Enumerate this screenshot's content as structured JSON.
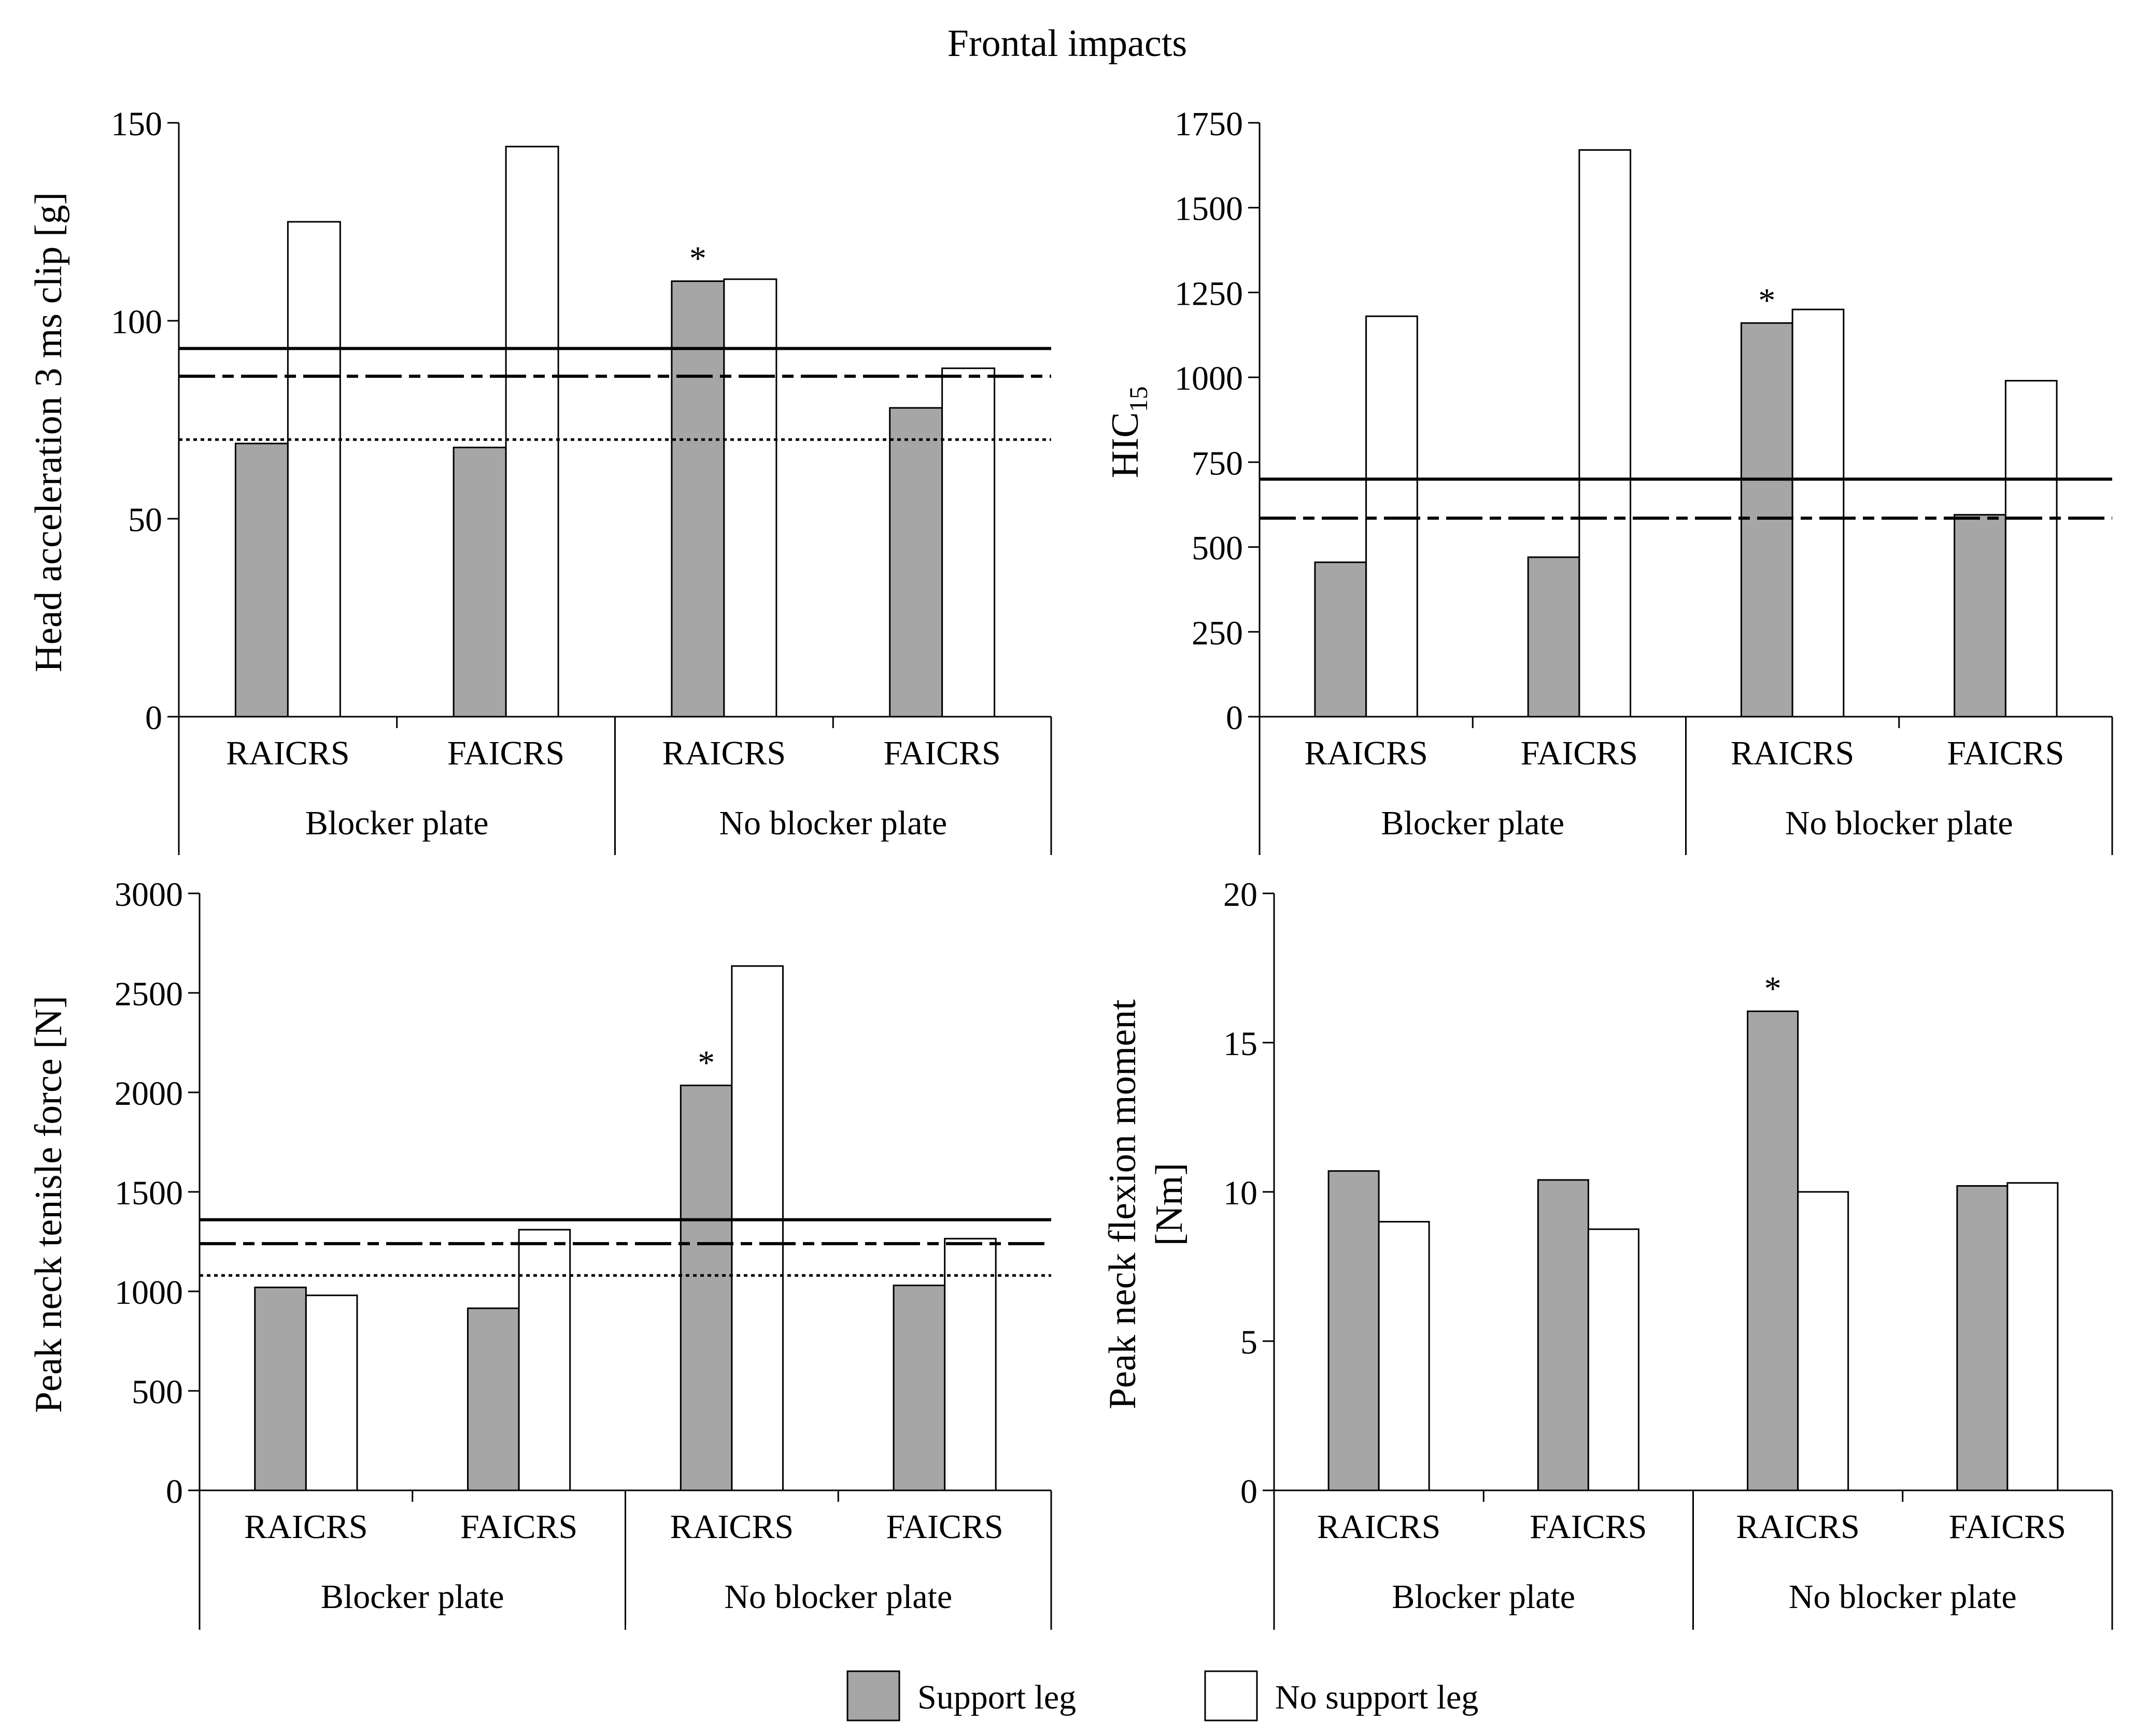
{
  "title": "Frontal impacts",
  "colors": {
    "support": "#a6a6a6",
    "no_support": "#ffffff",
    "line": "#000000"
  },
  "legend": [
    {
      "key": "support",
      "label": "Support leg"
    },
    {
      "key": "no_support",
      "label": "No support leg"
    }
  ],
  "chart_data": [
    {
      "type": "bar",
      "ylabel": "Head acceleration  3 ms clip [g]",
      "ylim": [
        0,
        150
      ],
      "yticks": [
        0,
        50,
        100,
        150
      ],
      "groups": [
        "Blocker plate",
        "No blocker plate"
      ],
      "categories": [
        "RAICRS",
        "FAICRS",
        "RAICRS",
        "FAICRS"
      ],
      "series": [
        {
          "name": "Support leg",
          "values": [
            69,
            68,
            110,
            78
          ]
        },
        {
          "name": "No support leg",
          "values": [
            125,
            144,
            110.5,
            88
          ]
        }
      ],
      "reference_lines": [
        {
          "style": "solid",
          "value": 93
        },
        {
          "style": "dashdot",
          "value": 86
        },
        {
          "style": "dotted",
          "value": 70
        }
      ],
      "annotations": [
        {
          "text": "*",
          "category_index": 2,
          "series": 0
        }
      ]
    },
    {
      "type": "bar",
      "ylabel": "HIC",
      "ylabel_sub": "15",
      "ylim": [
        0,
        1750
      ],
      "yticks": [
        0,
        250,
        500,
        750,
        1000,
        1250,
        1500,
        1750
      ],
      "groups": [
        "Blocker plate",
        "No blocker plate"
      ],
      "categories": [
        "RAICRS",
        "FAICRS",
        "RAICRS",
        "FAICRS"
      ],
      "series": [
        {
          "name": "Support leg",
          "values": [
            455,
            470,
            1160,
            595
          ]
        },
        {
          "name": "No support leg",
          "values": [
            1180,
            1670,
            1200,
            990
          ]
        }
      ],
      "reference_lines": [
        {
          "style": "solid",
          "value": 700
        },
        {
          "style": "dashdot",
          "value": 585
        }
      ],
      "annotations": [
        {
          "text": "*",
          "category_index": 2,
          "series": 0
        }
      ]
    },
    {
      "type": "bar",
      "ylabel": "Peak neck tenisle force [N]",
      "ylim": [
        0,
        3000
      ],
      "yticks": [
        0,
        500,
        1000,
        1500,
        2000,
        2500,
        3000
      ],
      "groups": [
        "Blocker plate",
        "No blocker plate"
      ],
      "categories": [
        "RAICRS",
        "FAICRS",
        "RAICRS",
        "FAICRS"
      ],
      "series": [
        {
          "name": "Support leg",
          "values": [
            1020,
            915,
            2035,
            1030
          ]
        },
        {
          "name": "No support leg",
          "values": [
            980,
            1310,
            2635,
            1265
          ]
        }
      ],
      "reference_lines": [
        {
          "style": "solid",
          "value": 1360
        },
        {
          "style": "dashdot",
          "value": 1240
        },
        {
          "style": "dotted",
          "value": 1080
        }
      ],
      "annotations": [
        {
          "text": "*",
          "category_index": 2,
          "series": 0
        }
      ]
    },
    {
      "type": "bar",
      "ylabel": "Peak neck flexion  moment",
      "ylabel2": "[Nm]",
      "ylim": [
        0,
        20
      ],
      "yticks": [
        0,
        5,
        10,
        15,
        20
      ],
      "groups": [
        "Blocker plate",
        "No blocker plate"
      ],
      "categories": [
        "RAICRS",
        "FAICRS",
        "RAICRS",
        "FAICRS"
      ],
      "series": [
        {
          "name": "Support leg",
          "values": [
            10.7,
            10.4,
            16.05,
            10.2
          ]
        },
        {
          "name": "No support leg",
          "values": [
            9.0,
            8.75,
            10.0,
            10.3
          ]
        }
      ],
      "reference_lines": [],
      "annotations": [
        {
          "text": "*",
          "category_index": 2,
          "series": 0
        }
      ]
    }
  ]
}
